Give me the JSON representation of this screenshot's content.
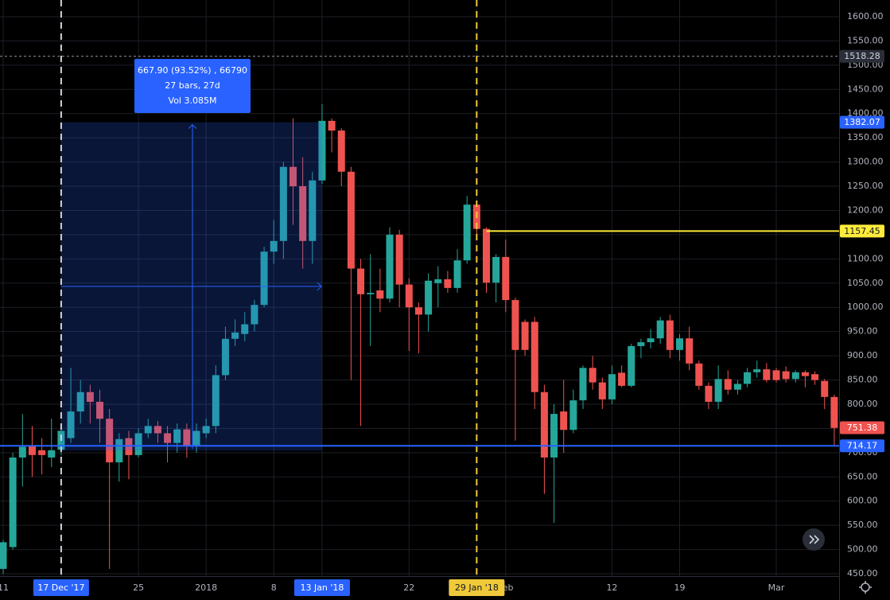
{
  "chart_data": {
    "type": "candlestick",
    "categories": [
      "11",
      null,
      null,
      null,
      null,
      null,
      "17 Dec '17",
      null,
      null,
      null,
      null,
      null,
      null,
      null,
      "25",
      null,
      null,
      null,
      null,
      null,
      null,
      "2018",
      null,
      null,
      null,
      null,
      null,
      null,
      "8",
      null,
      null,
      null,
      null,
      "13 Jan '18",
      null,
      null,
      null,
      null,
      null,
      null,
      null,
      null,
      "22",
      null,
      null,
      null,
      null,
      null,
      null,
      "29 Jan '18",
      null,
      null,
      "Feb",
      null,
      null,
      null,
      null,
      null,
      null,
      null,
      null,
      null,
      null,
      "12",
      null,
      null,
      null,
      null,
      null,
      null,
      "19",
      null,
      null,
      null,
      null,
      null,
      null,
      null,
      null,
      null,
      "Mar",
      null,
      null,
      null,
      null,
      null,
      null
    ],
    "open": [
      460,
      505,
      690,
      715,
      705,
      690,
      706,
      730,
      785,
      825,
      805,
      770,
      680,
      730,
      695,
      740,
      755,
      740,
      720,
      748,
      715,
      740,
      755,
      860,
      935,
      945,
      965,
      1005,
      1115,
      1137,
      1290,
      1250,
      1137,
      1262,
      1385,
      1365,
      1280,
      1080,
      1027,
      1035,
      1018,
      1150,
      1047,
      1000,
      985,
      1050,
      1058,
      1040,
      1097,
      1212,
      1162,
      1051,
      1104,
      1015,
      970,
      970,
      825,
      690,
      785,
      747,
      808,
      875,
      845,
      810,
      865,
      838,
      920,
      928,
      936,
      973,
      912,
      936,
      884,
      838,
      805,
      852,
      830,
      842,
      866,
      872,
      870,
      868,
      852,
      866,
      862,
      848,
      815
    ],
    "high": [
      520,
      700,
      780,
      755,
      730,
      770,
      755,
      875,
      850,
      840,
      830,
      790,
      740,
      745,
      750,
      770,
      765,
      755,
      760,
      760,
      760,
      770,
      880,
      960,
      975,
      990,
      1015,
      1125,
      1180,
      1300,
      1390,
      1310,
      1280,
      1420,
      1390,
      1370,
      1290,
      1100,
      1110,
      1080,
      1165,
      1160,
      1060,
      1010,
      1070,
      1085,
      1075,
      1120,
      1230,
      1215,
      1165,
      1110,
      1140,
      1020,
      975,
      980,
      840,
      800,
      850,
      830,
      880,
      900,
      855,
      880,
      880,
      925,
      935,
      955,
      980,
      985,
      945,
      960,
      890,
      845,
      880,
      870,
      850,
      875,
      890,
      885,
      875,
      878,
      870,
      870,
      868,
      852,
      820
    ],
    "low": [
      450,
      500,
      630,
      650,
      655,
      670,
      695,
      720,
      760,
      760,
      720,
      460,
      640,
      645,
      690,
      730,
      720,
      680,
      700,
      690,
      700,
      730,
      740,
      850,
      920,
      930,
      950,
      1000,
      1090,
      1100,
      1170,
      1080,
      1090,
      1255,
      1320,
      1250,
      850,
      755,
      920,
      990,
      1010,
      1000,
      910,
      905,
      950,
      1000,
      1030,
      1030,
      1090,
      1140,
      1030,
      1010,
      990,
      725,
      900,
      790,
      615,
      555,
      700,
      740,
      790,
      830,
      790,
      800,
      835,
      835,
      895,
      915,
      925,
      895,
      890,
      870,
      830,
      790,
      790,
      820,
      820,
      835,
      855,
      845,
      845,
      845,
      845,
      835,
      840,
      790,
      715
    ],
    "close": [
      515,
      690,
      712,
      695,
      695,
      705,
      745,
      785,
      825,
      805,
      770,
      680,
      728,
      695,
      740,
      755,
      740,
      720,
      748,
      715,
      745,
      755,
      860,
      935,
      948,
      965,
      1005,
      1115,
      1137,
      1290,
      1250,
      1137,
      1262,
      1385,
      1365,
      1280,
      1080,
      1027,
      1030,
      1018,
      1150,
      1047,
      1000,
      985,
      1055,
      1058,
      1040,
      1097,
      1212,
      1162,
      1051,
      1104,
      1015,
      912,
      912,
      825,
      690,
      780,
      747,
      808,
      875,
      845,
      810,
      862,
      838,
      920,
      928,
      936,
      973,
      912,
      936,
      884,
      838,
      805,
      852,
      830,
      842,
      866,
      872,
      850,
      850,
      852,
      866,
      858,
      850,
      815,
      751
    ],
    "up_color": "#26a69a",
    "down_color": "#ef5350",
    "ylim": [
      450,
      1600
    ],
    "yticks": [
      {
        "value": 450,
        "label": "450.00"
      },
      {
        "value": 500,
        "label": "500.00"
      },
      {
        "value": 550,
        "label": "550.00"
      },
      {
        "value": 600,
        "label": "600.00"
      },
      {
        "value": 650,
        "label": "650.00"
      },
      {
        "value": 700,
        "label": "700.00"
      },
      {
        "value": 750,
        "label": "750.00"
      },
      {
        "value": 800,
        "label": "800.00"
      },
      {
        "value": 850,
        "label": "850.00"
      },
      {
        "value": 900,
        "label": "900.00"
      },
      {
        "value": 950,
        "label": "950.00"
      },
      {
        "value": 1000,
        "label": "1000.00"
      },
      {
        "value": 1050,
        "label": "1050.00"
      },
      {
        "value": 1100,
        "label": "1100.00"
      },
      {
        "value": 1150,
        "label": "1150.00"
      },
      {
        "value": 1200,
        "label": "1200.00"
      },
      {
        "value": 1250,
        "label": "1250.00"
      },
      {
        "value": 1300,
        "label": "1300.00"
      },
      {
        "value": 1350,
        "label": "1350.00"
      },
      {
        "value": 1400,
        "label": "1400.00"
      },
      {
        "value": 1450,
        "label": "1450.00"
      },
      {
        "value": 1500,
        "label": "1500.00"
      },
      {
        "value": 1550,
        "label": "1550.00"
      },
      {
        "value": 1600,
        "label": "1600.00"
      }
    ],
    "grid": true,
    "levels": [
      {
        "value": 1518.28,
        "color": "#2a2e39",
        "text_color": "#d1d4dc",
        "line": "dashed"
      },
      {
        "value": 1382.07,
        "color": "#2962ff",
        "text_color": "#ffffff",
        "line": "none"
      },
      {
        "value": 1157.45,
        "color": "#ffeb3b",
        "text_color": "#131722",
        "line": "solid"
      },
      {
        "value": 751.38,
        "color": "#ef5350",
        "text_color": "#ffffff",
        "line": "none"
      },
      {
        "value": 714.17,
        "color": "#2962ff",
        "text_color": "#ffffff",
        "line": "solid"
      }
    ],
    "vlines": [
      {
        "category": 6,
        "color": "#d1d4dc"
      },
      {
        "category": 49,
        "color": "#f0c93a"
      }
    ],
    "highlight_ticks": [
      {
        "category": 6,
        "color": "#2962ff",
        "text_color": "#ffffff"
      },
      {
        "category": 33,
        "color": "#2962ff",
        "text_color": "#ffffff"
      },
      {
        "category": 49,
        "color": "#f0c93a",
        "text_color": "#131722"
      }
    ],
    "measure": {
      "from": 6,
      "to": 33,
      "lines": [
        "667.90 (93.52%) , 66790",
        "27 bars, 27d",
        "Vol 3.085M"
      ]
    }
  }
}
